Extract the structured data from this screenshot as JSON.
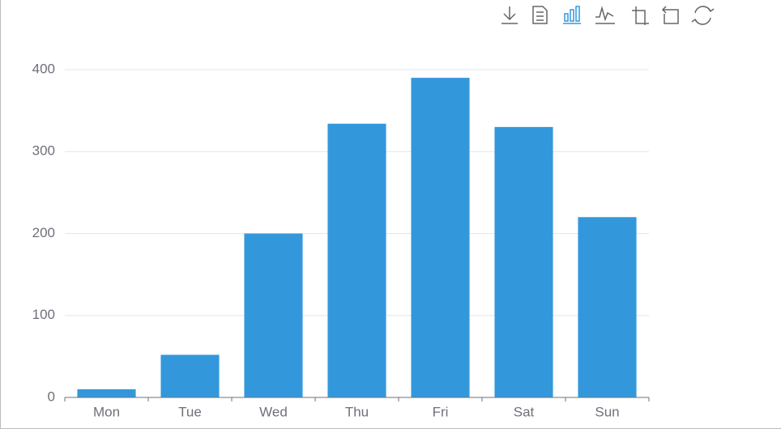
{
  "chart_data": {
    "type": "bar",
    "categories": [
      "Mon",
      "Tue",
      "Wed",
      "Thu",
      "Fri",
      "Sat",
      "Sun"
    ],
    "values": [
      10,
      52,
      200,
      334,
      390,
      330,
      220
    ],
    "color": "#3398db",
    "ylim": [
      0,
      400
    ],
    "yticks": [
      0,
      100,
      200,
      300,
      400
    ],
    "grid": true
  }
}
